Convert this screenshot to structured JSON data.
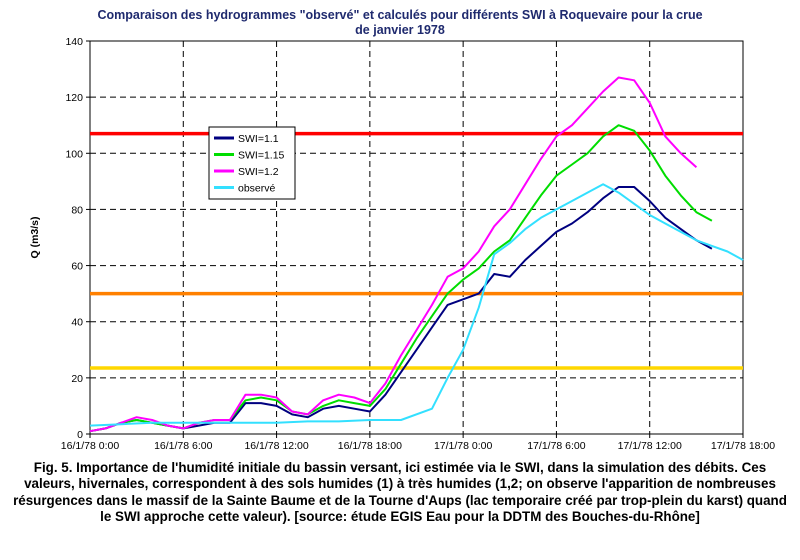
{
  "chart_data": {
    "type": "line",
    "title_lines": [
      "Comparaison des hydrogrammes \"observé\" et calculés pour différents SWI à Roquevaire pour la crue",
      "de janvier 1978"
    ],
    "xlabel": "",
    "ylabel": "Q (m3/s)",
    "xlim": [
      0,
      84
    ],
    "ylim": [
      0,
      140
    ],
    "y_ticks": [
      0,
      20,
      40,
      60,
      80,
      100,
      120,
      140
    ],
    "x_ticks": [
      {
        "t": 0,
        "label": "16/1/78 0:00"
      },
      {
        "t": 12,
        "label": "16/1/78 6:00"
      },
      {
        "t": 24,
        "label": "16/1/78 12:00"
      },
      {
        "t": 36,
        "label": "16/1/78 18:00"
      },
      {
        "t": 48,
        "label": "17/1/78 0:00"
      },
      {
        "t": 60,
        "label": "17/1/78 6:00"
      },
      {
        "t": 72,
        "label": "17/1/78 12:00"
      },
      {
        "t": 84,
        "label": "17/1/78 18:00"
      }
    ],
    "grid": true,
    "legend_position": "upper-left",
    "thresholds": [
      {
        "value": 107,
        "color": "#ff0000"
      },
      {
        "value": 50,
        "color": "#ff8000"
      },
      {
        "value": 23.5,
        "color": "#ffd700"
      }
    ],
    "series": [
      {
        "name": "SWI=1.1",
        "color": "#000080",
        "x": [
          0,
          2,
          4,
          6,
          8,
          10,
          12,
          14,
          16,
          18,
          20,
          22,
          24,
          26,
          28,
          30,
          32,
          34,
          36,
          38,
          40,
          42,
          44,
          46,
          48,
          50,
          52,
          54,
          56,
          58,
          60,
          62,
          64,
          66,
          68,
          70,
          72,
          74,
          76,
          78,
          80
        ],
        "y": [
          1,
          2,
          4,
          5,
          4,
          3,
          2,
          3,
          4,
          4,
          11,
          11,
          10,
          7,
          6,
          9,
          10,
          9,
          8,
          14,
          22,
          30,
          38,
          46,
          48,
          50,
          57,
          56,
          62,
          67,
          72,
          75,
          79,
          84,
          88,
          88,
          83,
          77,
          73,
          69,
          66
        ]
      },
      {
        "name": "SWI=1.15",
        "color": "#00dd00",
        "x": [
          0,
          2,
          4,
          6,
          8,
          10,
          12,
          14,
          16,
          18,
          20,
          22,
          24,
          26,
          28,
          30,
          32,
          34,
          36,
          38,
          40,
          42,
          44,
          46,
          48,
          50,
          52,
          54,
          56,
          58,
          60,
          62,
          64,
          66,
          68,
          70,
          72,
          74,
          76,
          78,
          80
        ],
        "y": [
          1,
          2,
          4,
          5,
          4,
          3,
          2,
          4,
          5,
          5,
          12,
          13,
          12,
          8,
          7,
          10,
          12,
          11,
          10,
          16,
          25,
          34,
          42,
          50,
          55,
          59,
          65,
          69,
          77,
          85,
          92,
          96,
          100,
          106,
          110,
          108,
          101,
          92,
          85,
          79,
          76
        ]
      },
      {
        "name": "SWI=1.2",
        "color": "#ff00ff",
        "x": [
          0,
          2,
          4,
          6,
          8,
          10,
          12,
          14,
          16,
          18,
          20,
          22,
          24,
          26,
          28,
          30,
          32,
          34,
          36,
          38,
          40,
          42,
          44,
          46,
          48,
          50,
          52,
          54,
          56,
          58,
          60,
          62,
          64,
          66,
          68,
          70,
          72,
          74,
          76,
          78
        ],
        "y": [
          1,
          2,
          4,
          6,
          5,
          3,
          2,
          4,
          5,
          5,
          14,
          14,
          13,
          8,
          7,
          12,
          14,
          13,
          11,
          18,
          28,
          37,
          46,
          56,
          59,
          65,
          74,
          80,
          89,
          98,
          106,
          110,
          116,
          122,
          127,
          126,
          118,
          106,
          100,
          95
        ]
      },
      {
        "name": "observé",
        "color": "#33e0ff",
        "x": [
          0,
          4,
          8,
          12,
          16,
          20,
          24,
          28,
          32,
          36,
          40,
          44,
          46,
          48,
          50,
          52,
          54,
          56,
          58,
          60,
          62,
          64,
          66,
          68,
          70,
          72,
          74,
          76,
          78,
          80,
          82,
          84
        ],
        "y": [
          3,
          3.5,
          4,
          4,
          4,
          4,
          4,
          4.5,
          4.5,
          5,
          5,
          9,
          20,
          30,
          45,
          64,
          68,
          73,
          77,
          80,
          83,
          86,
          89,
          86,
          82,
          78,
          75,
          72,
          69,
          67,
          65,
          62
        ]
      }
    ]
  },
  "caption": "Fig. 5. Importance de l'humidité initiale du bassin versant, ici estimée via le SWI, dans la simulation des débits. Ces valeurs, hivernales, correspondent à des sols humides (1) à très humides (1,2; on observe l'apparition de nombreuses résurgences dans le massif de la Sainte Baume et de la Tourne d'Aups (lac temporaire créé par trop-plein du karst) quand le SWI approche cette valeur). [source: étude EGIS Eau pour la DDTM des Bouches-du-Rhône]"
}
